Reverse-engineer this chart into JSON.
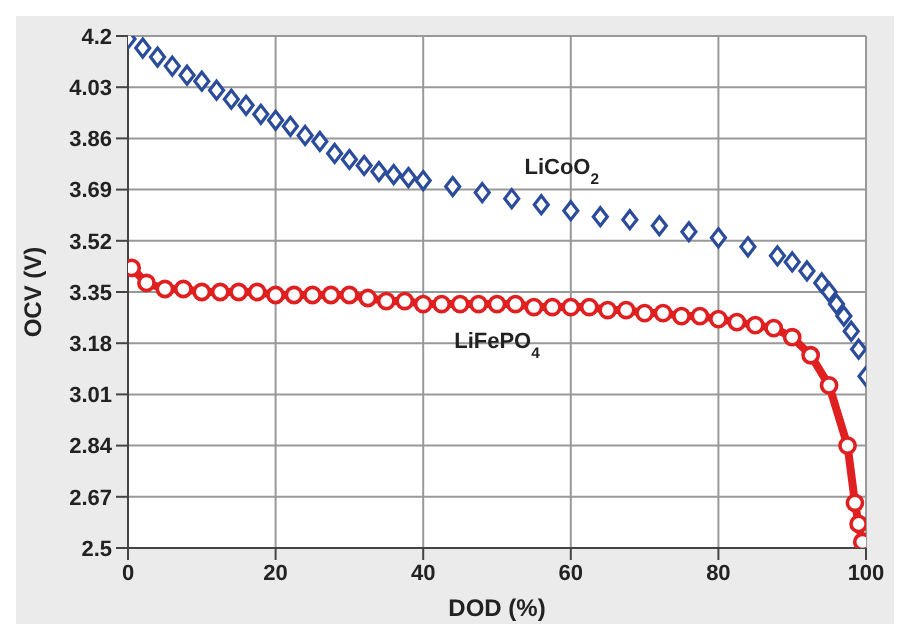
{
  "chart_data": {
    "type": "line",
    "xlabel": "DOD (%)",
    "ylabel": "OCV (V)",
    "xlim": [
      0,
      100
    ],
    "xticks": [
      0,
      20,
      40,
      60,
      80,
      100
    ],
    "ylim": [
      2.5,
      4.2
    ],
    "yticks": [
      2.5,
      2.67,
      2.84,
      3.01,
      3.18,
      3.35,
      3.52,
      3.69,
      3.86,
      4.03,
      4.2
    ],
    "grid": true,
    "legend": false,
    "series": [
      {
        "name": "LiCoO$_{2}$",
        "type": "scatter",
        "marker": "diamond",
        "color": "#2b4c9b",
        "x": [
          0,
          2,
          4,
          6,
          8,
          10,
          12,
          14,
          16,
          18,
          20,
          22,
          24,
          26,
          28,
          30,
          32,
          34,
          36,
          38,
          40,
          44,
          48,
          52,
          56,
          60,
          64,
          68,
          72,
          76,
          80,
          84,
          88,
          90,
          92,
          94,
          95,
          96,
          97,
          98,
          99,
          100
        ],
        "values": [
          4.19,
          4.16,
          4.13,
          4.1,
          4.07,
          4.05,
          4.02,
          3.99,
          3.97,
          3.94,
          3.92,
          3.9,
          3.87,
          3.85,
          3.81,
          3.79,
          3.77,
          3.75,
          3.74,
          3.73,
          3.72,
          3.7,
          3.68,
          3.66,
          3.64,
          3.62,
          3.6,
          3.59,
          3.57,
          3.55,
          3.53,
          3.5,
          3.47,
          3.45,
          3.42,
          3.38,
          3.35,
          3.31,
          3.27,
          3.22,
          3.16,
          3.07
        ]
      },
      {
        "name": "LiFePO$_{4}$",
        "marker": "circle",
        "line_style": "solid",
        "color": "#e02020",
        "x": [
          0.5,
          2.5,
          5,
          7.5,
          10,
          12.5,
          15,
          17.5,
          20,
          22.5,
          25,
          27.5,
          30,
          32.5,
          35,
          37.5,
          40,
          42.5,
          45,
          47.5,
          50,
          52.5,
          55,
          57.5,
          60,
          62.5,
          65,
          67.5,
          70,
          72.5,
          75,
          77.5,
          80,
          82.5,
          85,
          87.5,
          90,
          92.5,
          95,
          97.5,
          98.5,
          99,
          99.5
        ],
        "values": [
          3.43,
          3.38,
          3.36,
          3.36,
          3.35,
          3.35,
          3.35,
          3.35,
          3.34,
          3.34,
          3.34,
          3.34,
          3.34,
          3.33,
          3.32,
          3.32,
          3.31,
          3.31,
          3.31,
          3.31,
          3.31,
          3.31,
          3.3,
          3.3,
          3.3,
          3.3,
          3.29,
          3.29,
          3.28,
          3.28,
          3.27,
          3.27,
          3.26,
          3.25,
          3.24,
          3.23,
          3.2,
          3.14,
          3.04,
          2.84,
          2.65,
          2.58,
          2.52
        ]
      }
    ]
  }
}
